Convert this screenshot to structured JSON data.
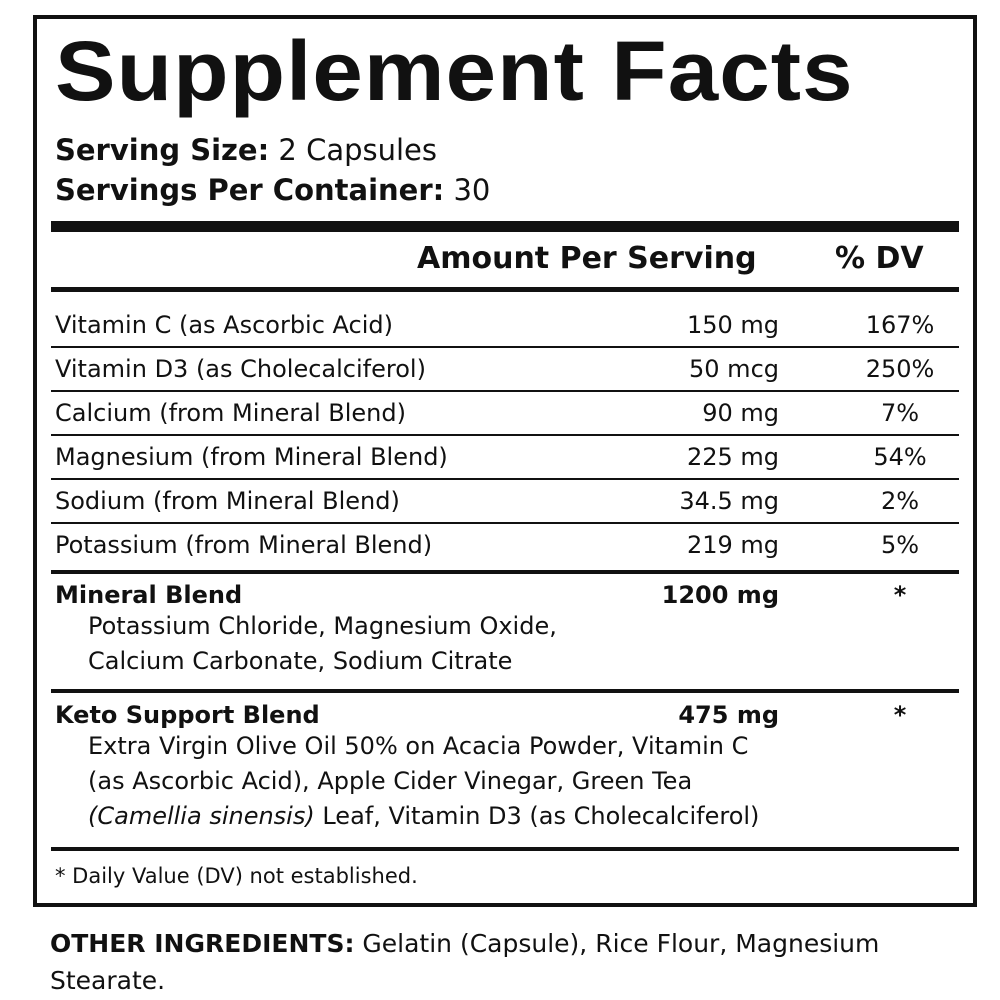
{
  "title": "Supplement Facts",
  "serving_size": {
    "label": "Serving Size:",
    "value": "2 Capsules"
  },
  "servings_per_container": {
    "label": "Servings Per Container:",
    "value": "30"
  },
  "header": {
    "amount": "Amount Per Serving",
    "dv": "% DV"
  },
  "nutrients": [
    {
      "name": "Vitamin C (as Ascorbic Acid)",
      "amount": "150 mg",
      "dv": "167%"
    },
    {
      "name": "Vitamin D3 (as Cholecalciferol)",
      "amount": "50 mcg",
      "dv": "250%"
    },
    {
      "name": "Calcium (from Mineral Blend)",
      "amount": "90 mg",
      "dv": "7%"
    },
    {
      "name": "Magnesium (from Mineral Blend)",
      "amount": "225 mg",
      "dv": "54%"
    },
    {
      "name": "Sodium (from Mineral Blend)",
      "amount": "34.5 mg",
      "dv": "2%"
    },
    {
      "name": "Potassium (from Mineral Blend)",
      "amount": "219 mg",
      "dv": "5%"
    }
  ],
  "mineral_blend": {
    "name": "Mineral Blend",
    "amount": "1200 mg",
    "dv": "*",
    "lines": [
      "Potassium Chloride, Magnesium Oxide,",
      "Calcium Carbonate, Sodium Citrate"
    ]
  },
  "keto_blend": {
    "name": "Keto Support Blend",
    "amount": "475 mg",
    "dv": "*",
    "lines": [
      "Extra Virgin Olive Oil 50% on Acacia Powder, Vitamin C",
      "(as Ascorbic Acid), Apple Cider Vinegar, Green Tea"
    ],
    "last_line_italic": "(Camellia sinensis)",
    "last_line_rest": " Leaf, Vitamin D3 (as Cholecalciferol)"
  },
  "footnote": "* Daily Value (DV) not established.",
  "other_ingredients": {
    "label": "OTHER INGREDIENTS:",
    "value": " Gelatin (Capsule), Rice Flour, Magnesium Stearate."
  }
}
